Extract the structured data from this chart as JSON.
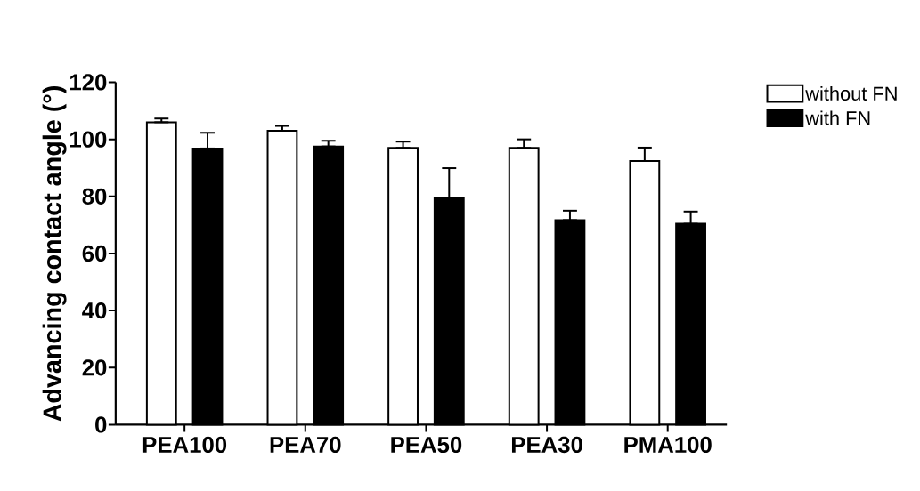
{
  "chart_data": {
    "type": "bar",
    "ylabel": "Advancing contact angle (°)",
    "categories": [
      "PEA100",
      "PEA70",
      "PEA50",
      "PEA30",
      "PMA100"
    ],
    "series": [
      {
        "name": "without FN",
        "color": "#ffffff",
        "values": [
          106,
          103,
          97,
          97,
          92.4
        ],
        "errors": [
          [
            106,
            107.3
          ],
          [
            103,
            104.7
          ],
          [
            97,
            99.2
          ],
          [
            97,
            100
          ],
          [
            92.4,
            97.1
          ]
        ]
      },
      {
        "name": "with FN",
        "color": "#000000",
        "values": [
          96.8,
          97.5,
          79.5,
          71.7,
          70.4
        ],
        "errors": [
          [
            96.8,
            102.3
          ],
          [
            97.5,
            99.5
          ],
          [
            79.5,
            89.9
          ],
          [
            71.7,
            75
          ],
          [
            70.4,
            74.7
          ]
        ]
      }
    ],
    "ylim": [
      0,
      120
    ],
    "yticks": [
      0,
      20,
      40,
      60,
      80,
      100,
      120
    ],
    "grid": false,
    "legend": "right"
  }
}
